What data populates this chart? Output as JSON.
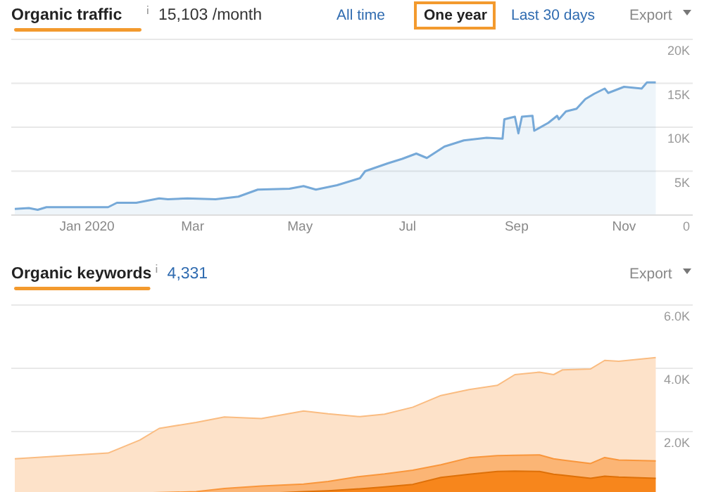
{
  "chart_data": [
    {
      "type": "area",
      "title": "Organic traffic",
      "subtitle": "15,103 /month",
      "annotations": [
        "All time",
        "One year",
        "Last 30 days",
        "Export"
      ],
      "x": [
        "2019-11-21",
        "2019-11-29",
        "2019-12-04",
        "2019-12-09",
        "2020-01-13",
        "2020-01-18",
        "2020-01-29",
        "2020-02-11",
        "2020-02-16",
        "2020-02-27",
        "2020-03-14",
        "2020-03-27",
        "2020-04-07",
        "2020-04-25",
        "2020-05-03",
        "2020-05-10",
        "2020-05-22",
        "2020-06-04",
        "2020-06-07",
        "2020-06-20",
        "2020-06-28",
        "2020-07-06",
        "2020-07-12",
        "2020-07-22",
        "2020-08-02",
        "2020-08-15",
        "2020-08-24",
        "2020-08-25",
        "2020-08-31",
        "2020-09-02",
        "2020-09-04",
        "2020-09-10",
        "2020-09-11",
        "2020-09-19",
        "2020-09-24",
        "2020-09-25",
        "2020-09-29",
        "2020-10-05",
        "2020-10-10",
        "2020-10-15",
        "2020-10-21",
        "2020-10-23",
        "2020-11-01",
        "2020-11-11",
        "2020-11-14",
        "2020-11-19"
      ],
      "series": [
        {
          "color": "#76a9d8",
          "values": [
            700,
            800,
            600,
            900,
            900,
            1400,
            1400,
            1900,
            1800,
            1900,
            1800,
            2100,
            2900,
            3000,
            3300,
            2900,
            3400,
            4200,
            5000,
            5900,
            6400,
            7000,
            6500,
            7800,
            8500,
            8800,
            8700,
            10900,
            11200,
            9300,
            11200,
            11300,
            9600,
            10500,
            11300,
            10900,
            11800,
            12100,
            13200,
            13800,
            14400,
            13900,
            14600,
            14400,
            15100,
            15100
          ]
        }
      ],
      "xlim": [
        "2019-11-19",
        "2020-12-10"
      ],
      "xticks": [
        {
          "value": "2020-01-01",
          "label": "Jan 2020"
        },
        {
          "value": "2020-03-01",
          "label": "Mar"
        },
        {
          "value": "2020-05-01",
          "label": "May"
        },
        {
          "value": "2020-07-01",
          "label": "Jul"
        },
        {
          "value": "2020-09-01",
          "label": "Sep"
        },
        {
          "value": "2020-11-01",
          "label": "Nov"
        }
      ],
      "ylim": [
        0,
        20000
      ],
      "yticks": [
        0,
        {
          "value": 5000,
          "label": "5K"
        },
        {
          "value": 10000,
          "label": "10K"
        },
        {
          "value": 15000,
          "label": "15K"
        },
        {
          "value": 20000,
          "label": "20K"
        }
      ],
      "grid": "y"
    },
    {
      "type": "area",
      "title": "Organic keywords",
      "subtitle": "4,331",
      "annotations": [
        "Export"
      ],
      "stacked": true,
      "x": [
        "2019-11-21",
        "2020-01-13",
        "2020-01-31",
        "2020-02-11",
        "2020-03-03",
        "2020-03-19",
        "2020-04-09",
        "2020-05-03",
        "2020-05-17",
        "2020-06-04",
        "2020-06-18",
        "2020-07-04",
        "2020-07-20",
        "2020-08-05",
        "2020-08-21",
        "2020-08-31",
        "2020-09-14",
        "2020-09-22",
        "2020-09-27",
        "2020-10-13",
        "2020-10-21",
        "2020-10-29",
        "2020-11-19"
      ],
      "series": [
        {
          "color": "#f7861c",
          "values": [
            0,
            0,
            0,
            0,
            10,
            20,
            40,
            100,
            130,
            190,
            250,
            330,
            550,
            650,
            740,
            750,
            740,
            650,
            620,
            520,
            590,
            560,
            520
          ]
        },
        {
          "color": "#fbb575",
          "values": [
            30,
            50,
            60,
            70,
            90,
            180,
            240,
            240,
            290,
            390,
            410,
            450,
            400,
            520,
            500,
            500,
            520,
            490,
            480,
            470,
            590,
            540,
            550
          ]
        },
        {
          "color": "#fde2c9",
          "values": [
            1110,
            1270,
            1670,
            2030,
            2190,
            2260,
            2130,
            2310,
            2140,
            1890,
            1890,
            1990,
            2190,
            2160,
            2220,
            2550,
            2620,
            2660,
            2850,
            2990,
            3070,
            3120,
            3270
          ]
        }
      ],
      "xlim": [
        "2019-11-19",
        "2020-12-10"
      ],
      "ylim": [
        0,
        6000
      ],
      "yticks": [
        {
          "value": 2000,
          "label": "2.0K"
        },
        {
          "value": 4000,
          "label": "4.0K"
        },
        {
          "value": 6000,
          "label": "6.0K"
        }
      ],
      "tick_labels": "y",
      "grid": "y"
    }
  ]
}
